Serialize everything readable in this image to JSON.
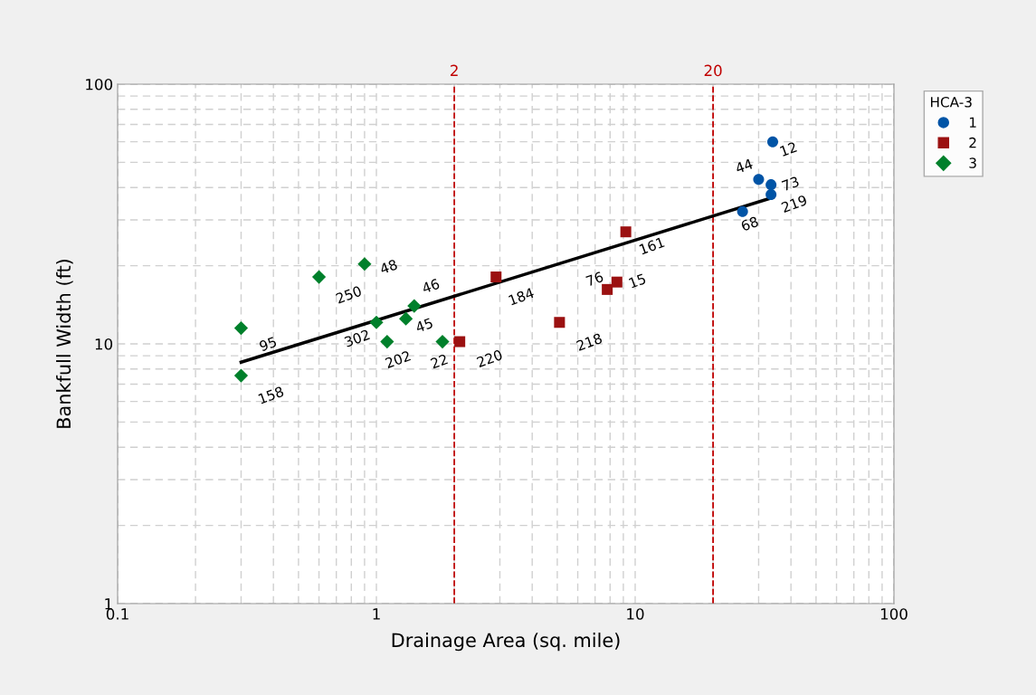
{
  "chart_data": {
    "type": "scatter",
    "xlabel": "Drainage Area (sq. mile)",
    "ylabel": "Bankfull Width (ft)",
    "legend_title": "HCA-3",
    "legend": "top right",
    "log": "xy",
    "grid": true,
    "xlim": [
      0.1,
      100
    ],
    "ylim": [
      1,
      100
    ],
    "xticks": [
      0.1,
      1,
      10,
      100
    ],
    "yticks": [
      1,
      10,
      100
    ],
    "series": [
      {
        "name": "1",
        "color": "#0054a6",
        "marker": "circle",
        "x": [
          34,
          30,
          33.5,
          33.5,
          26
        ],
        "values": [
          60,
          43,
          41,
          37.6,
          32.3
        ]
      },
      {
        "name": "2",
        "color": "#9b1111",
        "marker": "square",
        "x": [
          2.1,
          2.9,
          5.1,
          7.8,
          8.5,
          9.2
        ],
        "values": [
          10.2,
          18.1,
          12.1,
          16.2,
          17.3,
          27
        ]
      },
      {
        "name": "3",
        "color": "#00802b",
        "marker": "diamond",
        "x": [
          0.3,
          0.3,
          0.6,
          0.9,
          1.0,
          1.1,
          1.3,
          1.4,
          1.8
        ],
        "values": [
          11.5,
          7.55,
          18.1,
          20.3,
          12.1,
          10.2,
          12.5,
          14.0,
          10.2
        ]
      },
      {
        "type": "line",
        "color": "#000000",
        "marker": "none",
        "x": [
          0.3,
          34
        ],
        "values": [
          8.5,
          36.6
        ]
      }
    ],
    "ref_lines": [
      {
        "axis": "x",
        "value": 2,
        "label": "2",
        "color": "#c00000",
        "line_style": "dashed"
      },
      {
        "axis": "x",
        "value": 20,
        "label": "20",
        "color": "#c00000",
        "line_style": "dashed"
      }
    ],
    "annotations": [
      {
        "text": "12",
        "x": 34,
        "y": 60
      },
      {
        "text": "44",
        "x": 30,
        "y": 43
      },
      {
        "text": "73",
        "x": 33.5,
        "y": 41
      },
      {
        "text": "219",
        "x": 33.5,
        "y": 37.6
      },
      {
        "text": "68",
        "x": 26,
        "y": 32.3
      },
      {
        "text": "220",
        "x": 2.1,
        "y": 10.2
      },
      {
        "text": "184",
        "x": 2.9,
        "y": 18.1
      },
      {
        "text": "218",
        "x": 5.1,
        "y": 12.1
      },
      {
        "text": "76",
        "x": 7.8,
        "y": 16.2
      },
      {
        "text": "15",
        "x": 8.5,
        "y": 17.3
      },
      {
        "text": "161",
        "x": 9.2,
        "y": 27
      },
      {
        "text": "95",
        "x": 0.3,
        "y": 11.5
      },
      {
        "text": "158",
        "x": 0.3,
        "y": 7.55
      },
      {
        "text": "250",
        "x": 0.6,
        "y": 18.1
      },
      {
        "text": "48",
        "x": 0.9,
        "y": 20.3
      },
      {
        "text": "302",
        "x": 1.0,
        "y": 12.1
      },
      {
        "text": "202",
        "x": 1.1,
        "y": 10.2
      },
      {
        "text": "45",
        "x": 1.3,
        "y": 12.5
      },
      {
        "text": "46",
        "x": 1.4,
        "y": 14.0
      },
      {
        "text": "22",
        "x": 1.8,
        "y": 10.2
      }
    ]
  }
}
